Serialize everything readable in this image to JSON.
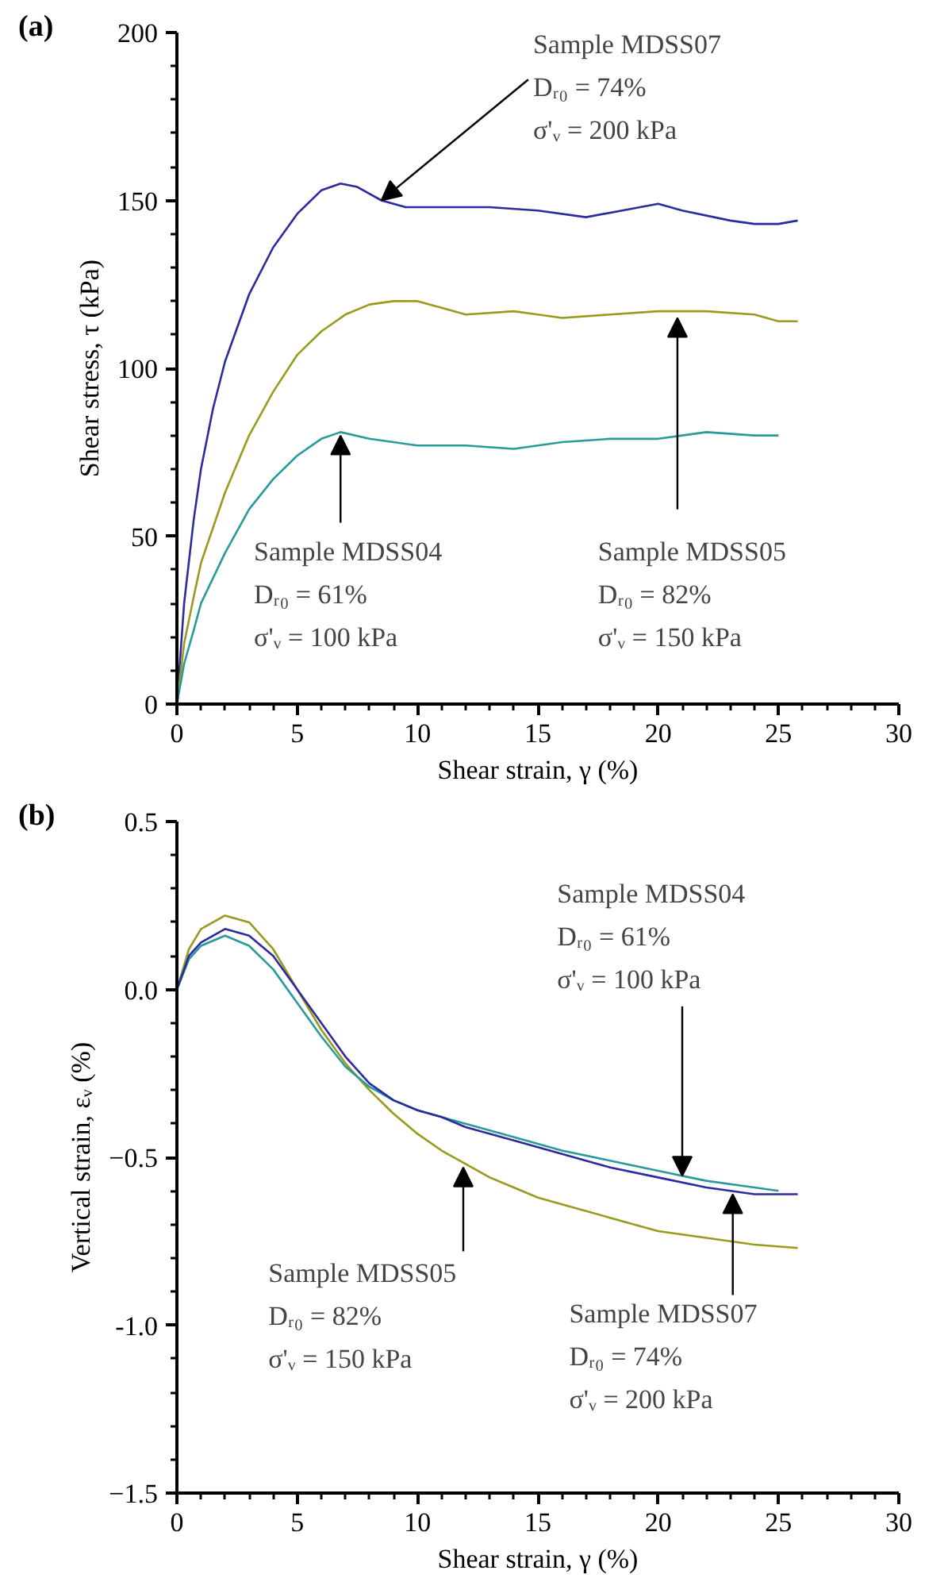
{
  "chart_data": [
    {
      "type": "line",
      "title": "(a)",
      "xlabel": "Shear strain, γ (%)",
      "ylabel": "Shear stress, τ (kPa)",
      "xlim": [
        0,
        30
      ],
      "xticks": [
        0,
        5,
        10,
        15,
        20,
        25,
        30
      ],
      "ylim": [
        0,
        200
      ],
      "yticks": [
        0,
        50,
        100,
        150,
        200
      ],
      "series": [
        {
          "color": "#2b2b9e",
          "x": [
            0,
            0.3,
            0.7,
            1,
            1.5,
            2,
            3,
            4,
            5,
            6,
            6.8,
            7.5,
            8.5,
            9.5,
            11,
            13,
            15,
            17,
            18.5,
            20,
            21,
            23,
            24,
            25,
            25.8
          ],
          "values": [
            0,
            30,
            55,
            70,
            88,
            102,
            122,
            136,
            146,
            153,
            155,
            154,
            150,
            148,
            148,
            148,
            147,
            145,
            147,
            149,
            147,
            144,
            143,
            143,
            144
          ]
        },
        {
          "color": "#9a9a1e",
          "x": [
            0,
            0.3,
            0.7,
            1,
            2,
            3,
            4,
            5,
            6,
            7,
            8,
            9,
            10,
            11,
            12,
            14,
            15,
            16,
            18,
            20,
            22,
            24,
            25,
            25.8
          ],
          "values": [
            0,
            18,
            32,
            42,
            63,
            80,
            93,
            104,
            111,
            116,
            119,
            120,
            120,
            118,
            116,
            117,
            116,
            115,
            116,
            117,
            117,
            116,
            114,
            114
          ]
        },
        {
          "color": "#2a9a9a",
          "x": [
            0,
            0.3,
            0.7,
            1,
            2,
            3,
            4,
            5,
            6,
            6.8,
            8,
            9,
            10,
            12,
            14,
            16,
            18,
            20,
            21,
            22,
            24,
            25
          ],
          "values": [
            0,
            12,
            22,
            30,
            45,
            58,
            67,
            74,
            79,
            81,
            79,
            78,
            77,
            77,
            76,
            78,
            79,
            79,
            80,
            81,
            80,
            80
          ]
        }
      ],
      "annotations": [
        {
          "text": "Sample MDSS07\nDᵣ₀ =  74%\nσ'ᵥ = 200 kPa",
          "x": 8.5,
          "y": 150
        },
        {
          "text": "Sample MDSS04\nDᵣ₀ =  61%\nσ'ᵥ = 100 kPa",
          "x": 6.8,
          "y": 80
        },
        {
          "text": "Sample MDSS05\nDᵣ₀ =  82%\nσ'ᵥ = 150 kPa",
          "x": 20.8,
          "y": 115
        }
      ]
    },
    {
      "type": "line",
      "title": "(b)",
      "xlabel": "Shear strain, γ (%)",
      "ylabel": "Vertical strain, εᵥ (%)",
      "xlim": [
        0,
        30
      ],
      "xticks": [
        0,
        5,
        10,
        15,
        20,
        25,
        30
      ],
      "ylim": [
        -1.5,
        0.5
      ],
      "yticks": [
        0.5,
        {
          "value": 0,
          "label": "0.0"
        },
        -0.5,
        {
          "value": -1,
          "label": "-1.0"
        },
        -1.5
      ],
      "series": [
        {
          "color": "#9a9a1e",
          "x": [
            0,
            0.5,
            1,
            2,
            3,
            4,
            5,
            6,
            7,
            8,
            9,
            10,
            11,
            12,
            13,
            14,
            15,
            16,
            18,
            20,
            22,
            24,
            25.8
          ],
          "values": [
            0,
            0.12,
            0.18,
            0.22,
            0.2,
            0.12,
            0.0,
            -0.12,
            -0.22,
            -0.3,
            -0.37,
            -0.43,
            -0.48,
            -0.52,
            -0.56,
            -0.59,
            -0.62,
            -0.64,
            -0.68,
            -0.72,
            -0.74,
            -0.76,
            -0.77
          ]
        },
        {
          "color": "#2a9a9a",
          "x": [
            0,
            0.5,
            1,
            2,
            3,
            4,
            5,
            6,
            7,
            8,
            9,
            10,
            12,
            14,
            16,
            18,
            20,
            22,
            24,
            25
          ],
          "values": [
            0,
            0.09,
            0.13,
            0.16,
            0.13,
            0.06,
            -0.04,
            -0.14,
            -0.23,
            -0.29,
            -0.33,
            -0.36,
            -0.4,
            -0.44,
            -0.48,
            -0.51,
            -0.54,
            -0.57,
            -0.59,
            -0.6
          ]
        },
        {
          "color": "#2b2b9e",
          "x": [
            0,
            0.5,
            1,
            2,
            3,
            4,
            5,
            6,
            7,
            8,
            9,
            10,
            11,
            12,
            14,
            16,
            18,
            20,
            22,
            24,
            25.8
          ],
          "values": [
            0,
            0.1,
            0.14,
            0.18,
            0.16,
            0.1,
            0.0,
            -0.1,
            -0.2,
            -0.28,
            -0.33,
            -0.36,
            -0.38,
            -0.41,
            -0.45,
            -0.49,
            -0.53,
            -0.56,
            -0.59,
            -0.61,
            -0.61
          ]
        }
      ],
      "annotations": [
        {
          "text": "Sample MDSS04\nDᵣ₀ =  61%\nσ'ᵥ = 100 kPa",
          "x": 21,
          "y": -0.555
        },
        {
          "text": "Sample MDSS05\nDᵣ₀ =  82%\nσ'ᵥ = 150 kPa",
          "x": 11.9,
          "y": -0.53
        },
        {
          "text": "Sample MDSS07\nDᵣ₀ =  74%\nσ'ᵥ = 200 kPa",
          "x": 23.1,
          "y": -0.61
        }
      ]
    }
  ]
}
